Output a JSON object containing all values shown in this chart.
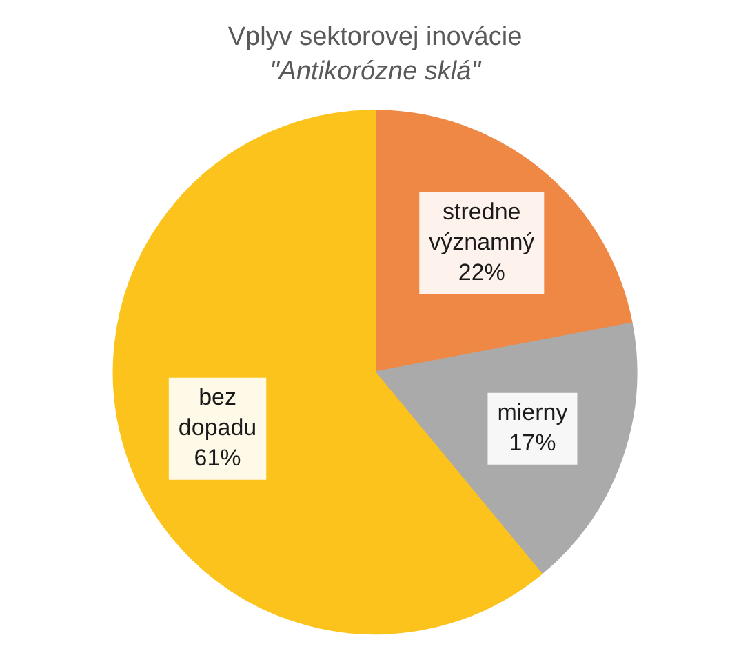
{
  "chart_data": {
    "type": "pie",
    "title": "Vplyv sektorovej inovácie",
    "subtitle": "\"Antikorózne sklá\"",
    "categories": [
      "stredne významný",
      "mierny",
      "bez dopadu"
    ],
    "values": [
      22,
      17,
      61
    ],
    "colors": [
      "#ee8844",
      "#aaaaaa",
      "#fbc31c"
    ],
    "value_labels": [
      "22%",
      "17%",
      "61%"
    ]
  }
}
